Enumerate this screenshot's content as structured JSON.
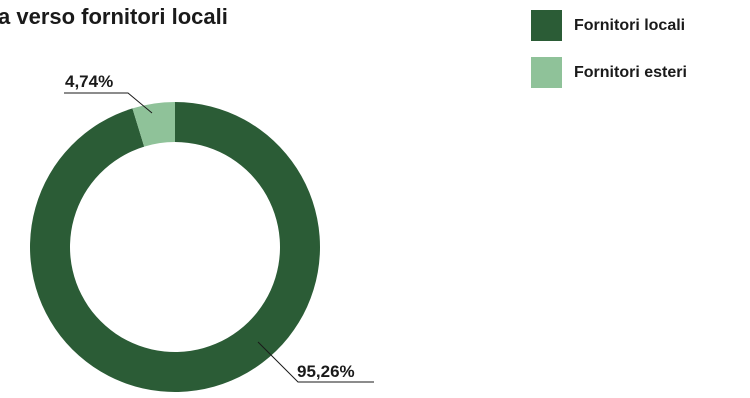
{
  "chart_data": {
    "type": "pie",
    "title": "a verso fornitori locali",
    "categories": [
      "Fornitori locali",
      "Fornitori esteri"
    ],
    "values": [
      95.26,
      4.74
    ],
    "value_labels": [
      "95,26%",
      "4,74%"
    ],
    "colors": [
      "#2b5c36",
      "#8fc299"
    ],
    "style": "donut",
    "legend_position": "top-right"
  }
}
